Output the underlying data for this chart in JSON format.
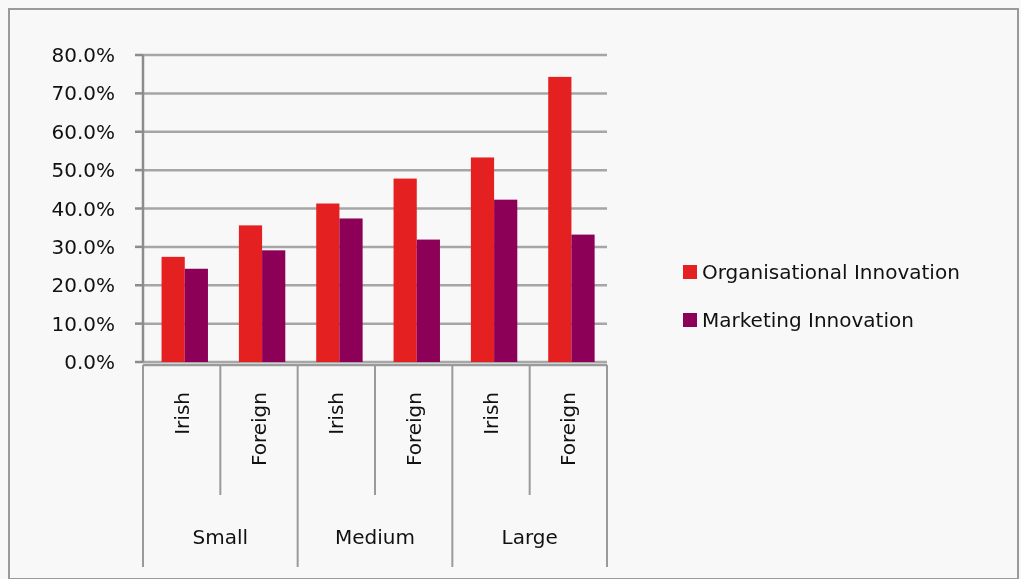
{
  "chart_data": {
    "type": "bar",
    "categories": [
      "Irish",
      "Foreign",
      "Irish",
      "Foreign",
      "Irish",
      "Foreign"
    ],
    "annotations": [
      "Small",
      "Medium",
      "Large"
    ],
    "series": [
      {
        "name": "Organisational Innovation",
        "color": "#e52020",
        "values": [
          27.4,
          35.6,
          41.3,
          47.8,
          53.3,
          74.3
        ]
      },
      {
        "name": "Marketing Innovation",
        "color": "#8c0058",
        "values": [
          24.3,
          29.1,
          37.4,
          31.9,
          42.3,
          33.2
        ]
      }
    ],
    "ylim": [
      0,
      80
    ],
    "yticks": [
      {
        "value": 0,
        "label": "0.0%"
      },
      {
        "value": 10,
        "label": "10.0%"
      },
      {
        "value": 20,
        "label": "20.0%"
      },
      {
        "value": 30,
        "label": "30.0%"
      },
      {
        "value": 40,
        "label": "40.0%"
      },
      {
        "value": 50,
        "label": "50.0%"
      },
      {
        "value": 60,
        "label": "60.0%"
      },
      {
        "value": 70,
        "label": "70.0%"
      },
      {
        "value": 80,
        "label": "80.0%"
      }
    ],
    "grid": "y",
    "legend": "right"
  }
}
